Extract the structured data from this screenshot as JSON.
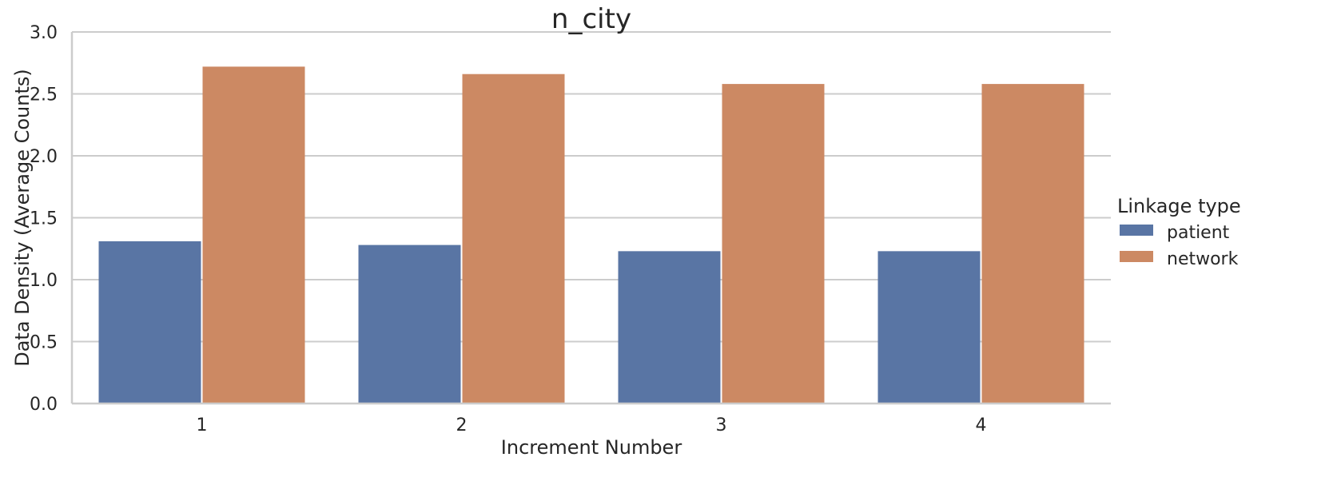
{
  "chart_data": {
    "type": "bar",
    "title": "n_city",
    "xlabel": "Increment Number",
    "ylabel": "Data Density (Average Counts)",
    "categories": [
      "1",
      "2",
      "3",
      "4"
    ],
    "series": [
      {
        "name": "patient",
        "values": [
          1.31,
          1.28,
          1.23,
          1.23
        ],
        "color": "#5975a4"
      },
      {
        "name": "network",
        "values": [
          2.72,
          2.66,
          2.58,
          2.58
        ],
        "color": "#cc8963"
      }
    ],
    "ylim": [
      0,
      3.0
    ],
    "yticks": [
      "0.0",
      "0.5",
      "1.0",
      "1.5",
      "2.0",
      "2.5",
      "3.0"
    ],
    "grid": "y",
    "legend": {
      "title": "Linkage type",
      "placement": "right"
    }
  }
}
